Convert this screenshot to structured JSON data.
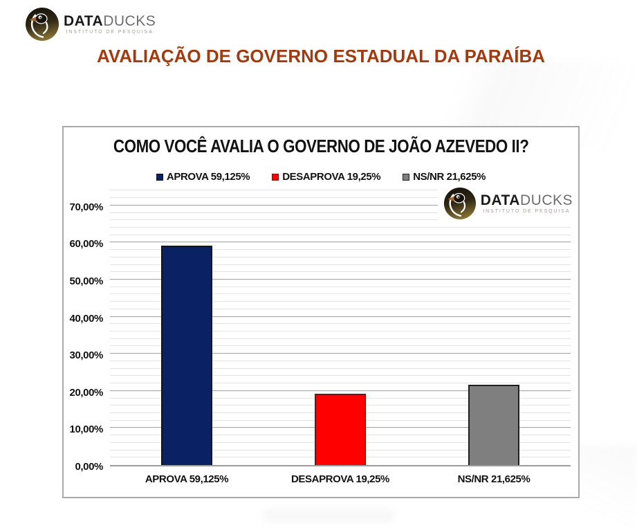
{
  "brand": {
    "name_bold": "DATA",
    "name_light": "DUCKS",
    "subtitle": "INSTITUTO DE PESQUISA"
  },
  "page": {
    "title": "AVALIAÇÃO DE GOVERNO ESTADUAL DA PARAÍBA",
    "title_color": "#A23A0F"
  },
  "chart_data": {
    "type": "bar",
    "title": "COMO VOCÊ AVALIA O GOVERNO DE JOÃO AZEVEDO II?",
    "categories": [
      "APROVA 59,125%",
      "DESAPROVA 19,25%",
      "NS/NR 21,625%"
    ],
    "values": [
      59.125,
      19.25,
      21.625
    ],
    "series_colors": [
      "#0A2163",
      "#FF0000",
      "#7F7F7F"
    ],
    "series_border_colors": [
      "#10131F",
      "#7C1010",
      "#1F1F1F"
    ],
    "legend": [
      "APROVA 59,125%",
      "DESAPROVA 19,25%",
      "NS/NR 21,625%"
    ],
    "legend_position": "top-center",
    "xlabel": "",
    "ylabel": "",
    "y_ticks": [
      "0,00%",
      "10,00%",
      "20,00%",
      "30,00%",
      "40,00%",
      "50,00%",
      "60,00%",
      "70,00%"
    ],
    "y_tick_values": [
      0,
      10,
      20,
      30,
      40,
      50,
      60,
      70
    ],
    "ylim": [
      0,
      75
    ],
    "grid": {
      "orientation": "horizontal",
      "major_step": 10,
      "minor_step": 2,
      "major_color": "#a8a8a8",
      "minor_color": "#e4e4e4"
    }
  }
}
